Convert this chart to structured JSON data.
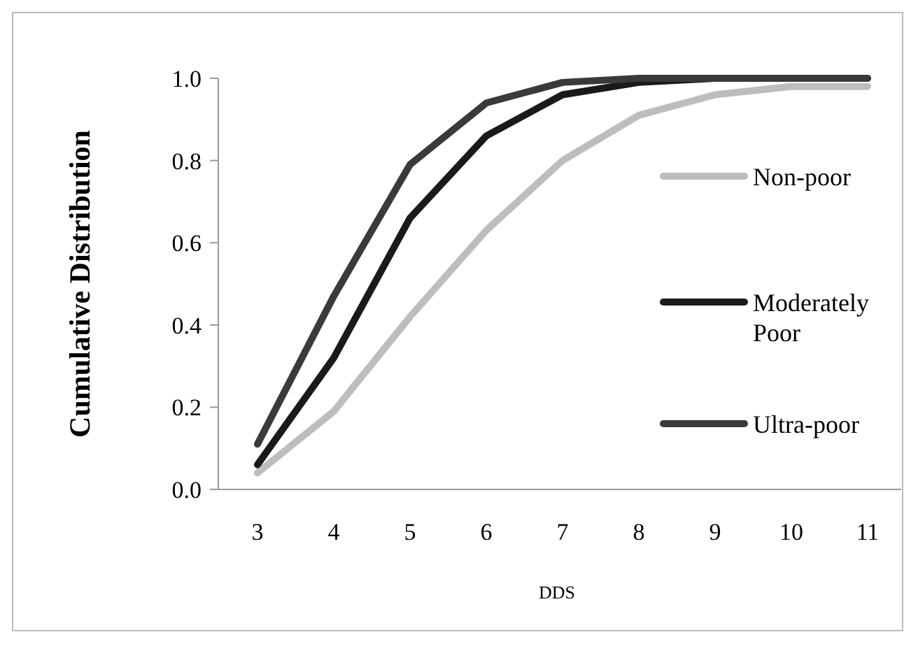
{
  "chart_data": {
    "type": "line",
    "xlabel": "DDS",
    "ylabel": "Cumulative Distribution",
    "categories": [
      "3",
      "4",
      "5",
      "6",
      "7",
      "8",
      "9",
      "10",
      "11"
    ],
    "ylim": [
      0,
      1
    ],
    "yticks": [
      {
        "value": 0,
        "label": "0.0"
      },
      {
        "value": 0.2,
        "label": "0.2"
      },
      {
        "value": 0.4,
        "label": "0.4"
      },
      {
        "value": 0.6,
        "label": "0.6"
      },
      {
        "value": 0.8,
        "label": "0.8"
      },
      {
        "value": 1,
        "label": "1.0"
      }
    ],
    "grid": false,
    "legend": "right",
    "marker": "none",
    "line_style": "solid",
    "series": [
      {
        "name": "Non-poor",
        "color": "#bdbdbd",
        "values": [
          0.04,
          0.19,
          0.42,
          0.63,
          0.8,
          0.91,
          0.96,
          0.98,
          0.98
        ]
      },
      {
        "name": "Moderately Poor",
        "color": "#1a1a1a",
        "values": [
          0.06,
          0.32,
          0.66,
          0.86,
          0.96,
          0.99,
          1.0,
          1.0,
          1.0
        ]
      },
      {
        "name": "Ultra-poor",
        "color": "#3a3a3a",
        "values": [
          0.11,
          0.47,
          0.79,
          0.94,
          0.99,
          1.0,
          1.0,
          1.0,
          1.0
        ]
      }
    ]
  }
}
